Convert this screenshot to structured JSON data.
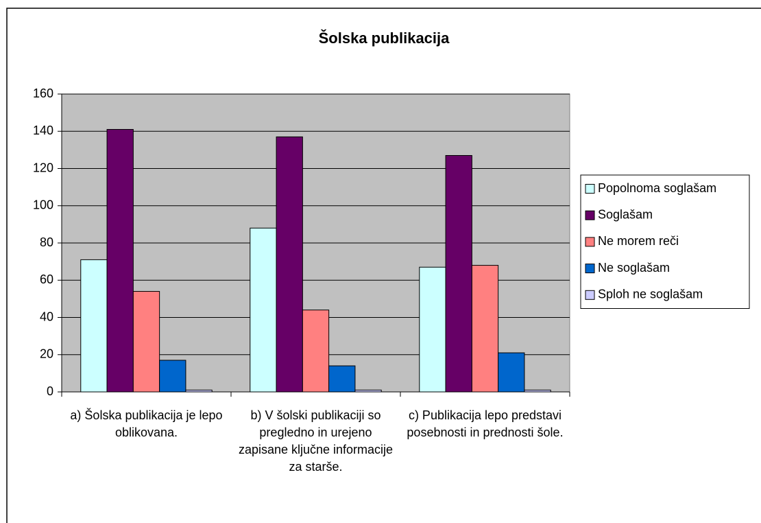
{
  "chart_data": {
    "type": "bar",
    "title": "Šolska publikacija",
    "categories": [
      "a) Šolska publikacija je lepo oblikovana.",
      "b) V šolski publikaciji so pregledno in urejeno zapisane ključne informacije za starše.",
      "c) Publikacija lepo predstavi posebnosti in prednosti šole."
    ],
    "series": [
      {
        "name": "Popolnoma soglašam",
        "color": "#ccffff",
        "values": [
          71,
          88,
          67
        ]
      },
      {
        "name": "Soglašam",
        "color": "#660066",
        "values": [
          141,
          137,
          127
        ]
      },
      {
        "name": "Ne morem reči",
        "color": "#ff8080",
        "values": [
          54,
          44,
          68
        ]
      },
      {
        "name": "Ne soglašam",
        "color": "#0066cc",
        "values": [
          17,
          14,
          21
        ]
      },
      {
        "name": "Sploh ne soglašam",
        "color": "#ccccff",
        "values": [
          1,
          1,
          1
        ]
      }
    ],
    "ylim": [
      0,
      160
    ],
    "yticks": [
      0,
      20,
      40,
      60,
      80,
      100,
      120,
      140,
      160
    ],
    "grid": true,
    "legend": "right"
  }
}
